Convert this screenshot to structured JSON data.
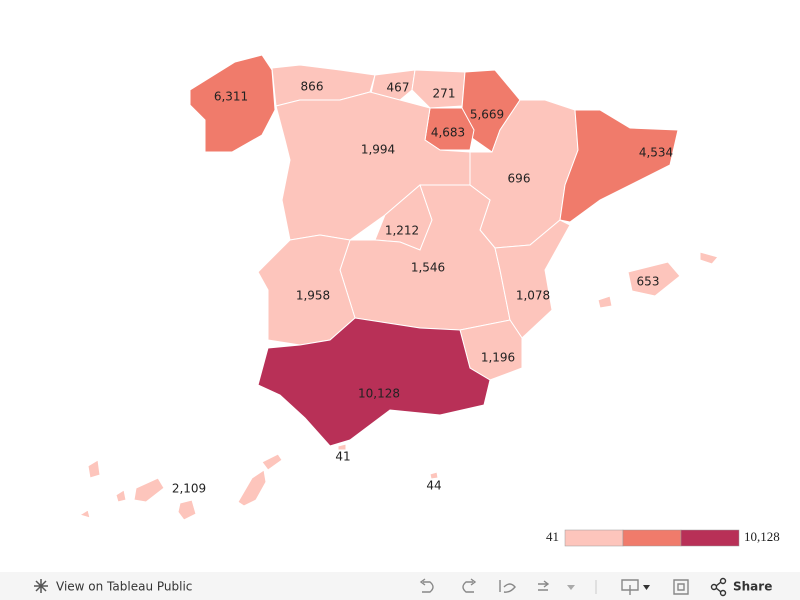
{
  "map": {
    "values": [
      6311,
      866,
      467,
      271,
      5669,
      4683,
      1994,
      696,
      4534,
      1212,
      1546,
      1958,
      1078,
      653,
      1196,
      10128,
      41,
      44,
      2109
    ],
    "value_labels": [
      "6,311",
      "866",
      "467",
      "271",
      "5,669",
      "4,683",
      "1,994",
      "696",
      "4,534",
      "1,212",
      "1,546",
      "1,958",
      "1,078",
      "653",
      "1,196",
      "10,128",
      "41",
      "44",
      "2,109"
    ],
    "colors": [
      "#f07b6b",
      "#fdc5bc",
      "#fdc5bc",
      "#fdc5bc",
      "#f07b6b",
      "#f07b6b",
      "#fdc5bc",
      "#fdc5bc",
      "#f07b6b",
      "#fdc5bc",
      "#fdc5bc",
      "#fdc5bc",
      "#fdc5bc",
      "#fdc5bc",
      "#fdc5bc",
      "#b83057",
      "#fdc5bc",
      "#fdc5bc",
      "#fdc5bc"
    ]
  },
  "legend": {
    "low": 41,
    "high": {
      "value": 10128,
      "label": "10,128"
    },
    "colors": [
      "#fdc5bc",
      "#f07b6b",
      "#b83057"
    ]
  },
  "toolbar": {
    "view_link": "View on Tableau Public",
    "share": "Share"
  }
}
